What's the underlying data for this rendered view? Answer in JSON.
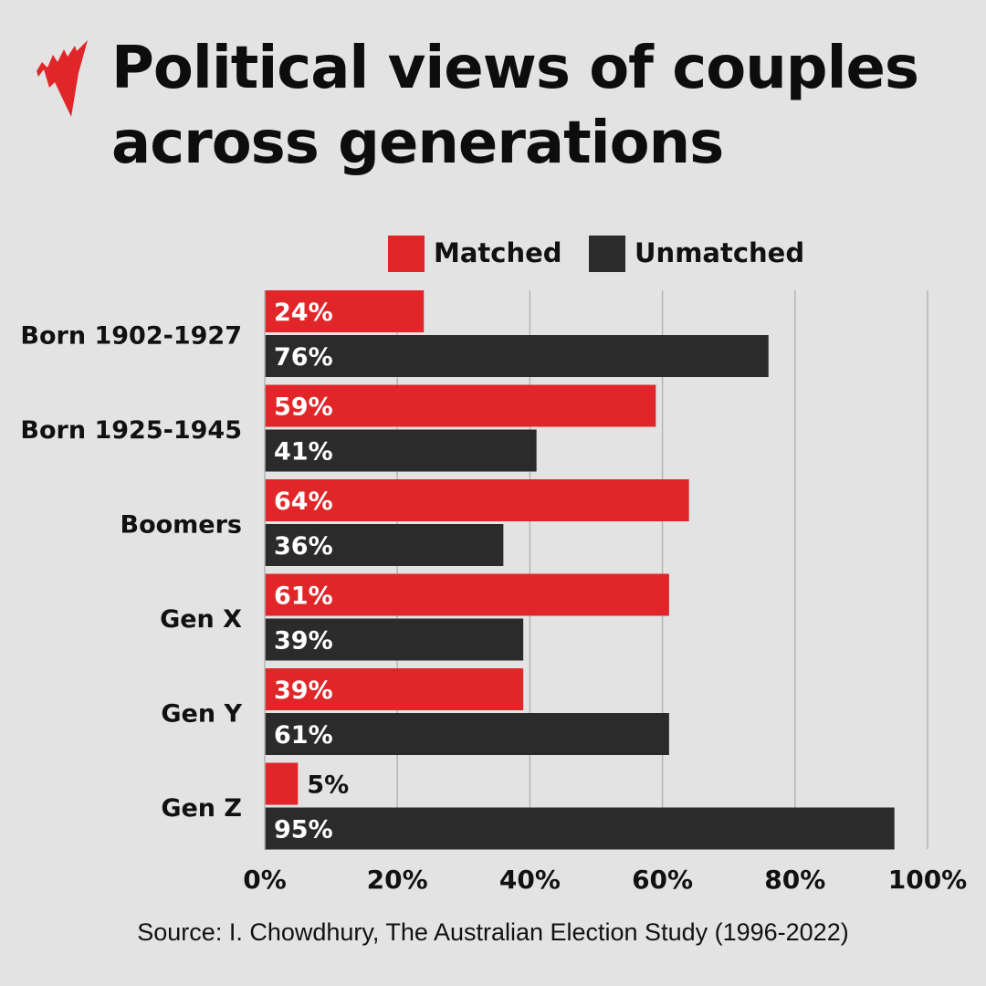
{
  "title": "Political views of couples across generations",
  "logo": "SBS mercury logo",
  "colors": {
    "matched": "#e1262a",
    "unmatched": "#2b2b2b",
    "background": "#e3e3e3"
  },
  "chart_data": {
    "type": "bar",
    "orientation": "horizontal",
    "title": "Political views of couples across generations",
    "categories": [
      "Born 1902-1927",
      "Born 1925-1945",
      "Boomers",
      "Gen X",
      "Gen Y",
      "Gen Z"
    ],
    "series": [
      {
        "name": "Matched",
        "values": [
          24,
          59,
          64,
          61,
          39,
          5
        ]
      },
      {
        "name": "Unmatched",
        "values": [
          76,
          41,
          36,
          39,
          61,
          95
        ]
      }
    ],
    "xlim": [
      0,
      100
    ],
    "xticks": [
      "0%",
      "20%",
      "40%",
      "60%",
      "80%",
      "100%"
    ],
    "grid": true,
    "legend": "top",
    "value_format": "percent"
  },
  "legend": {
    "matched": "Matched",
    "unmatched": "Unmatched"
  },
  "source": "Source:  I. Chowdhury, The Australian Election Study (1996-2022)"
}
